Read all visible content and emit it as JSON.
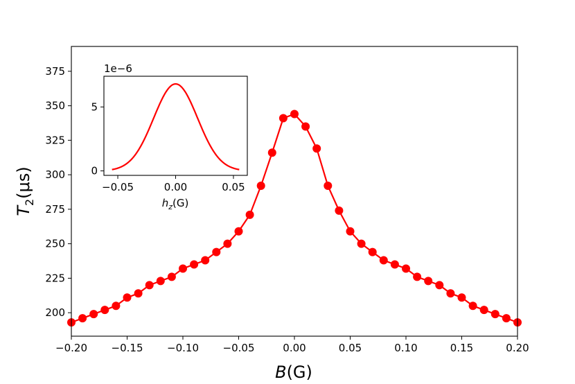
{
  "chart_data": [
    {
      "type": "line",
      "series": [
        {
          "name": "T2",
          "color": "#ff0000",
          "marker": "circle",
          "x": [
            -0.2,
            -0.19,
            -0.18,
            -0.17,
            -0.16,
            -0.15,
            -0.14,
            -0.13,
            -0.12,
            -0.11,
            -0.1,
            -0.09,
            -0.08,
            -0.07,
            -0.06,
            -0.05,
            -0.04,
            -0.03,
            -0.02,
            -0.01,
            0.0,
            0.01,
            0.02,
            0.03,
            0.04,
            0.05,
            0.06,
            0.07,
            0.08,
            0.09,
            0.1,
            0.11,
            0.12,
            0.13,
            0.14,
            0.15,
            0.16,
            0.17,
            0.18,
            0.19,
            0.2
          ],
          "y": [
            193,
            196,
            199,
            202,
            205,
            211,
            214,
            220,
            223,
            226,
            232,
            235,
            238,
            244,
            250,
            259,
            271,
            292,
            316,
            341,
            344,
            335,
            319,
            292,
            274,
            259,
            250,
            244,
            238,
            235,
            232,
            226,
            223,
            220,
            214,
            211,
            205,
            202,
            199,
            196,
            193
          ]
        }
      ],
      "xlabel_italic": "B",
      "xlabel_unit": "(G)",
      "ylabel_symbol": "T",
      "ylabel_subscript": "2",
      "ylabel_unit": "(μs)",
      "xlim": [
        -0.2,
        0.2
      ],
      "ylim": [
        183,
        393
      ],
      "xticks": [
        -0.2,
        -0.15,
        -0.1,
        -0.05,
        0.0,
        0.05,
        0.1,
        0.15,
        0.2
      ],
      "xtick_labels": [
        "−0.20",
        "−0.15",
        "−0.10",
        "−0.05",
        "0.00",
        "0.05",
        "0.10",
        "0.15",
        "0.20"
      ],
      "yticks": [
        200,
        225,
        250,
        275,
        300,
        325,
        350,
        375
      ],
      "ytick_labels": [
        "200",
        "225",
        "250",
        "275",
        "300",
        "325",
        "350",
        "375"
      ],
      "grid": false
    },
    {
      "type": "line",
      "role": "inset",
      "series": [
        {
          "name": "distribution",
          "color": "#ff0000",
          "gaussian_peak": 6.8e-06,
          "gaussian_sigma": 0.019,
          "x_range": [
            -0.055,
            0.055
          ]
        }
      ],
      "offset_label": "1e−6",
      "xlabel_italic": "h",
      "xlabel_subscript": "z",
      "xlabel_unit": "(G)",
      "xlim": [
        -0.062,
        0.062
      ],
      "ylim": [
        -0.35,
        7.4
      ],
      "xticks": [
        -0.05,
        0.0,
        0.05
      ],
      "xtick_labels": [
        "−0.05",
        "0.00",
        "0.05"
      ],
      "yticks": [
        0,
        5
      ],
      "ytick_labels": [
        "0",
        "5"
      ]
    }
  ]
}
